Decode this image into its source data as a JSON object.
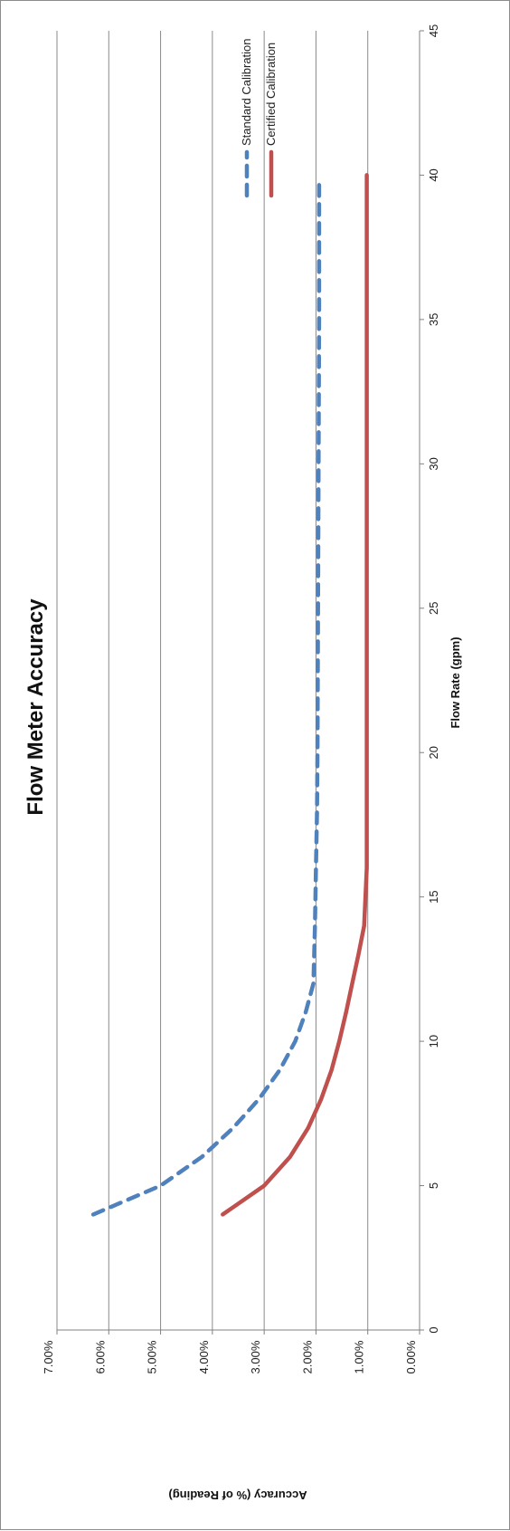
{
  "chart_data": {
    "type": "line",
    "title": "Flow Meter Accuracy",
    "xlabel": "Flow Rate (gpm)",
    "ylabel": "Accuracy (% of Reading)",
    "xlim": [
      0,
      45
    ],
    "ylim": [
      0,
      0.07
    ],
    "x_ticks": [
      0,
      5,
      10,
      15,
      20,
      25,
      30,
      35,
      40,
      45
    ],
    "x_tick_labels": [
      "0",
      "5",
      "10",
      "15",
      "20",
      "25",
      "30",
      "35",
      "40",
      "45"
    ],
    "y_ticks": [
      0,
      0.01,
      0.02,
      0.03,
      0.04,
      0.05,
      0.06,
      0.07
    ],
    "y_tick_labels": [
      "0.00%",
      "1.00%",
      "2.00%",
      "3.00%",
      "4.00%",
      "5.00%",
      "6.00%",
      "7.00%"
    ],
    "grid": true,
    "legend_position": "top-right",
    "series": [
      {
        "name": "Standard Calibration",
        "color": "#4f81bd",
        "style": "dashed",
        "x": [
          4,
          5,
          6,
          7,
          8,
          9,
          10,
          11,
          12,
          14,
          16,
          18,
          20,
          25,
          30,
          35,
          39.7
        ],
        "y": [
          0.063,
          0.05,
          0.042,
          0.036,
          0.031,
          0.027,
          0.024,
          0.022,
          0.0205,
          0.0202,
          0.02,
          0.0198,
          0.0197,
          0.0196,
          0.0195,
          0.0194,
          0.0194
        ]
      },
      {
        "name": "Certified Calibration",
        "color": "#c0504d",
        "style": "solid",
        "x": [
          4,
          5,
          6,
          7,
          8,
          9,
          10,
          11,
          12,
          13,
          14,
          16,
          20,
          25,
          30,
          35,
          40
        ],
        "y": [
          0.038,
          0.03,
          0.025,
          0.0215,
          0.019,
          0.017,
          0.0155,
          0.0142,
          0.013,
          0.0118,
          0.0107,
          0.0102,
          0.0102,
          0.0102,
          0.0102,
          0.0102,
          0.0102
        ]
      }
    ]
  }
}
